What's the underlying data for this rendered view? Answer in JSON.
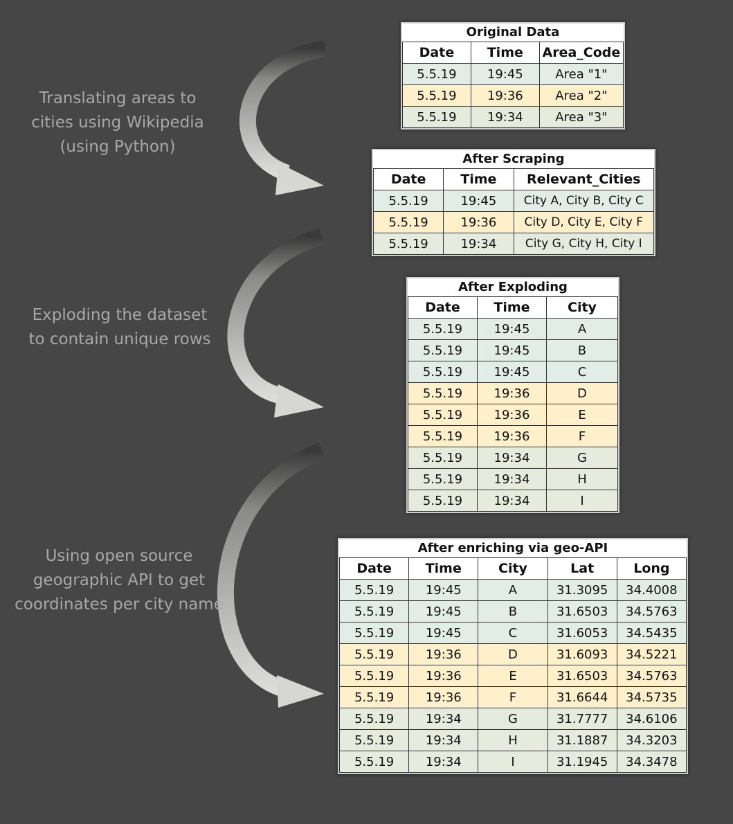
{
  "steps": [
    {
      "lines": [
        "Translating areas to",
        "cities using Wikipedia",
        "(using Python)"
      ]
    },
    {
      "lines": [
        "Exploding the dataset",
        "to contain unique rows"
      ]
    },
    {
      "lines": [
        "Using open source",
        "geographic API to get",
        "coordinates per city name"
      ]
    }
  ],
  "tables": [
    {
      "title": "Original Data",
      "headers": [
        "Date",
        "Time",
        "Area_Code"
      ],
      "rows": [
        [
          "5.5.19",
          "19:45",
          "Area \"1\""
        ],
        [
          "5.5.19",
          "19:36",
          "Area \"2\""
        ],
        [
          "5.5.19",
          "19:34",
          "Area \"3\""
        ]
      ]
    },
    {
      "title": "After Scraping",
      "headers": [
        "Date",
        "Time",
        "Relevant_Cities"
      ],
      "rows": [
        [
          "5.5.19",
          "19:45",
          "City A, City B, City C"
        ],
        [
          "5.5.19",
          "19:36",
          "City D, City E, City F"
        ],
        [
          "5.5.19",
          "19:34",
          "City G, City H, City I"
        ]
      ]
    },
    {
      "title": "After Exploding",
      "headers": [
        "Date",
        "Time",
        "City"
      ],
      "rows": [
        [
          "5.5.19",
          "19:45",
          "A"
        ],
        [
          "5.5.19",
          "19:45",
          "B"
        ],
        [
          "5.5.19",
          "19:45",
          "C"
        ],
        [
          "5.5.19",
          "19:36",
          "D"
        ],
        [
          "5.5.19",
          "19:36",
          "E"
        ],
        [
          "5.5.19",
          "19:36",
          "F"
        ],
        [
          "5.5.19",
          "19:34",
          "G"
        ],
        [
          "5.5.19",
          "19:34",
          "H"
        ],
        [
          "5.5.19",
          "19:34",
          "I"
        ]
      ]
    },
    {
      "title": "After enriching via geo-API",
      "headers": [
        "Date",
        "Time",
        "City",
        "Lat",
        "Long"
      ],
      "rows": [
        [
          "5.5.19",
          "19:45",
          "A",
          "31.3095",
          "34.4008"
        ],
        [
          "5.5.19",
          "19:45",
          "B",
          "31.6503",
          "34.5763"
        ],
        [
          "5.5.19",
          "19:45",
          "C",
          "31.6053",
          "34.5435"
        ],
        [
          "5.5.19",
          "19:36",
          "D",
          "31.6093",
          "34.5221"
        ],
        [
          "5.5.19",
          "19:36",
          "E",
          "31.6503",
          "34.5763"
        ],
        [
          "5.5.19",
          "19:36",
          "F",
          "31.6644",
          "34.5735"
        ],
        [
          "5.5.19",
          "19:34",
          "G",
          "31.7777",
          "34.6106"
        ],
        [
          "5.5.19",
          "19:34",
          "H",
          "31.1887",
          "34.3203"
        ],
        [
          "5.5.19",
          "19:34",
          "I",
          "31.1945",
          "34.3478"
        ]
      ]
    }
  ],
  "colors": {
    "background": "#464646",
    "caption_text": "#a8a8a8",
    "group_1945_row": "#e2ede8",
    "group_1936_row": "#fff0cc",
    "group_1934_row": "#e5ecde",
    "arrow_fill": "#d9dad6"
  }
}
